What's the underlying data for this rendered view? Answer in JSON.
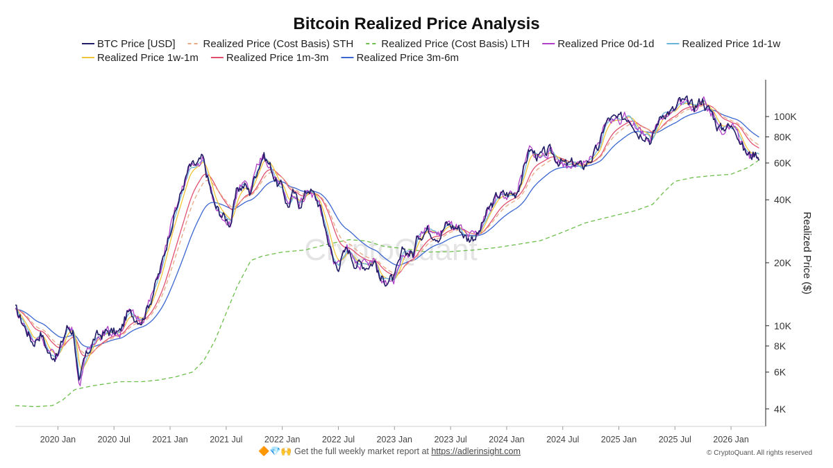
{
  "footer": {
    "emoji": "🔶💎🙌",
    "text": "Get the full weekly market report at ",
    "link": "https://adlerinsight.com",
    "copyright": "© CryptoQuant. All rights reserved"
  },
  "chart_data": {
    "type": "line",
    "title": "Bitcoin Realized Price Analysis",
    "ylabel": "Realized Price ($)",
    "xlabel": "",
    "watermark": "CryptoQuant",
    "yscale": "log",
    "ylim": [
      3300,
      150000
    ],
    "xlim": [
      2019.62,
      2026.29
    ],
    "yticks": [
      {
        "value": 4000,
        "label": "4K"
      },
      {
        "value": 6000,
        "label": "6K"
      },
      {
        "value": 8000,
        "label": "8K"
      },
      {
        "value": 10000,
        "label": "10K"
      },
      {
        "value": 20000,
        "label": "20K"
      },
      {
        "value": 40000,
        "label": "40K"
      },
      {
        "value": 60000,
        "label": "60K"
      },
      {
        "value": 80000,
        "label": "80K"
      },
      {
        "value": 100000,
        "label": "100K"
      }
    ],
    "xticks": [
      {
        "value": 2020.0,
        "label": "2020 Jan"
      },
      {
        "value": 2020.5,
        "label": "2020 Jul"
      },
      {
        "value": 2021.0,
        "label": "2021 Jan"
      },
      {
        "value": 2021.5,
        "label": "2021 Jul"
      },
      {
        "value": 2022.0,
        "label": "2022 Jan"
      },
      {
        "value": 2022.5,
        "label": "2022 Jul"
      },
      {
        "value": 2023.0,
        "label": "2023 Jan"
      },
      {
        "value": 2023.5,
        "label": "2023 Jul"
      },
      {
        "value": 2024.0,
        "label": "2024 Jan"
      },
      {
        "value": 2024.5,
        "label": "2024 Jul"
      },
      {
        "value": 2025.0,
        "label": "2025 Jan"
      },
      {
        "value": 2025.5,
        "label": "2025 Jul"
      },
      {
        "value": 2026.0,
        "label": "2026 Jan"
      }
    ],
    "btc_anchors": [
      [
        2019.62,
        12000
      ],
      [
        2019.7,
        10000
      ],
      [
        2019.78,
        8300
      ],
      [
        2019.85,
        9300
      ],
      [
        2019.92,
        7300
      ],
      [
        2020.0,
        7200
      ],
      [
        2020.08,
        9800
      ],
      [
        2020.14,
        9500
      ],
      [
        2020.19,
        5000
      ],
      [
        2020.23,
        6700
      ],
      [
        2020.33,
        8800
      ],
      [
        2020.45,
        9400
      ],
      [
        2020.55,
        9200
      ],
      [
        2020.62,
        11500
      ],
      [
        2020.75,
        10700
      ],
      [
        2020.83,
        13500
      ],
      [
        2020.92,
        19000
      ],
      [
        2021.0,
        29000
      ],
      [
        2021.08,
        40000
      ],
      [
        2021.12,
        47000
      ],
      [
        2021.17,
        57000
      ],
      [
        2021.25,
        59000
      ],
      [
        2021.29,
        63000
      ],
      [
        2021.35,
        47000
      ],
      [
        2021.4,
        37000
      ],
      [
        2021.46,
        34000
      ],
      [
        2021.54,
        31000
      ],
      [
        2021.6,
        45000
      ],
      [
        2021.67,
        47000
      ],
      [
        2021.71,
        43000
      ],
      [
        2021.77,
        55000
      ],
      [
        2021.83,
        66000
      ],
      [
        2021.9,
        57000
      ],
      [
        2021.96,
        47000
      ],
      [
        2022.0,
        46000
      ],
      [
        2022.05,
        37000
      ],
      [
        2022.1,
        43000
      ],
      [
        2022.15,
        38000
      ],
      [
        2022.24,
        46000
      ],
      [
        2022.33,
        38000
      ],
      [
        2022.38,
        30000
      ],
      [
        2022.46,
        20000
      ],
      [
        2022.5,
        19500
      ],
      [
        2022.58,
        23500
      ],
      [
        2022.65,
        20000
      ],
      [
        2022.75,
        19500
      ],
      [
        2022.83,
        20500
      ],
      [
        2022.87,
        16500
      ],
      [
        2022.96,
        16600
      ],
      [
        2023.0,
        16700
      ],
      [
        2023.08,
        23000
      ],
      [
        2023.17,
        22000
      ],
      [
        2023.21,
        27000
      ],
      [
        2023.29,
        29000
      ],
      [
        2023.4,
        27000
      ],
      [
        2023.46,
        30500
      ],
      [
        2023.58,
        29300
      ],
      [
        2023.65,
        26000
      ],
      [
        2023.75,
        27500
      ],
      [
        2023.83,
        35000
      ],
      [
        2023.92,
        42000
      ],
      [
        2024.0,
        42500
      ],
      [
        2024.08,
        43000
      ],
      [
        2024.14,
        52000
      ],
      [
        2024.2,
        70000
      ],
      [
        2024.29,
        64000
      ],
      [
        2024.38,
        68000
      ],
      [
        2024.46,
        62000
      ],
      [
        2024.54,
        58000
      ],
      [
        2024.6,
        60000
      ],
      [
        2024.67,
        57000
      ],
      [
        2024.75,
        63000
      ],
      [
        2024.83,
        72000
      ],
      [
        2024.87,
        91000
      ],
      [
        2024.92,
        98000
      ],
      [
        2025.0,
        96000
      ],
      [
        2025.08,
        101000
      ],
      [
        2025.13,
        95000
      ],
      [
        2025.17,
        84000
      ],
      [
        2025.25,
        83000
      ],
      [
        2025.29,
        76000
      ],
      [
        2025.35,
        95000
      ],
      [
        2025.4,
        105000
      ],
      [
        2025.5,
        107000
      ],
      [
        2025.54,
        118000
      ],
      [
        2025.62,
        115000
      ],
      [
        2025.67,
        111000
      ],
      [
        2025.75,
        122000
      ],
      [
        2025.78,
        110000
      ],
      [
        2025.83,
        105000
      ],
      [
        2025.88,
        90000
      ],
      [
        2025.92,
        87000
      ],
      [
        2025.96,
        92000
      ],
      [
        2026.0,
        88000
      ],
      [
        2026.04,
        90000
      ],
      [
        2026.08,
        78000
      ],
      [
        2026.12,
        68000
      ],
      [
        2026.17,
        65000
      ],
      [
        2026.21,
        67000
      ],
      [
        2026.25,
        66000
      ]
    ],
    "lth_anchors": [
      [
        2019.62,
        4150
      ],
      [
        2019.8,
        4100
      ],
      [
        2019.95,
        4150
      ],
      [
        2020.04,
        4400
      ],
      [
        2020.15,
        4950
      ],
      [
        2020.3,
        5150
      ],
      [
        2020.55,
        5400
      ],
      [
        2020.75,
        5400
      ],
      [
        2020.9,
        5500
      ],
      [
        2021.05,
        5700
      ],
      [
        2021.2,
        6000
      ],
      [
        2021.3,
        6800
      ],
      [
        2021.4,
        8500
      ],
      [
        2021.5,
        11500
      ],
      [
        2021.6,
        15500
      ],
      [
        2021.72,
        20500
      ],
      [
        2021.82,
        21500
      ],
      [
        2022.0,
        22500
      ],
      [
        2022.2,
        23000
      ],
      [
        2022.4,
        24500
      ],
      [
        2022.6,
        25800
      ],
      [
        2022.75,
        25400
      ],
      [
        2022.9,
        24000
      ],
      [
        2023.1,
        23300
      ],
      [
        2023.3,
        22500
      ],
      [
        2023.5,
        22600
      ],
      [
        2023.7,
        23000
      ],
      [
        2023.9,
        23600
      ],
      [
        2024.1,
        24500
      ],
      [
        2024.3,
        25500
      ],
      [
        2024.5,
        28000
      ],
      [
        2024.7,
        31000
      ],
      [
        2024.85,
        32500
      ],
      [
        2025.0,
        34000
      ],
      [
        2025.15,
        35500
      ],
      [
        2025.3,
        38000
      ],
      [
        2025.4,
        43500
      ],
      [
        2025.5,
        49000
      ],
      [
        2025.65,
        51000
      ],
      [
        2025.8,
        52000
      ],
      [
        2026.0,
        53000
      ],
      [
        2026.15,
        57000
      ],
      [
        2026.25,
        62000
      ]
    ],
    "series": [
      {
        "name": "BTC Price [USD]",
        "color": "#221c66",
        "dash": "solid",
        "smoothing": 0,
        "offset": 1.0,
        "jitter": 0.08
      },
      {
        "name": "Realized Price (Cost Basis) STH",
        "color": "#e8a882",
        "dash": "dashed",
        "smoothing": 0.14,
        "offset": 1.0,
        "jitter": 0
      },
      {
        "name": "Realized Price (Cost Basis) LTH",
        "color": "#6bbf4a",
        "dash": "dashed",
        "smoothing": 0,
        "offset": 1.0,
        "jitter": 0
      },
      {
        "name": "Realized Price 0d-1d",
        "color": "#b03fc7",
        "dash": "solid",
        "smoothing": 0.008,
        "offset": 1.0,
        "jitter": 0.07
      },
      {
        "name": "Realized Price 1d-1w",
        "color": "#6ab3d8",
        "dash": "solid",
        "smoothing": 0.02,
        "offset": 1.0,
        "jitter": 0.03
      },
      {
        "name": "Realized Price 1w-1m",
        "color": "#f0c43a",
        "dash": "solid",
        "smoothing": 0.04,
        "offset": 1.0,
        "jitter": 0
      },
      {
        "name": "Realized Price 1m-3m",
        "color": "#e0506e",
        "dash": "solid",
        "smoothing": 0.11,
        "offset": 1.0,
        "jitter": 0
      },
      {
        "name": "Realized Price 3m-6m",
        "color": "#3b66d1",
        "dash": "solid",
        "smoothing": 0.25,
        "offset": 1.0,
        "jitter": 0
      }
    ]
  }
}
